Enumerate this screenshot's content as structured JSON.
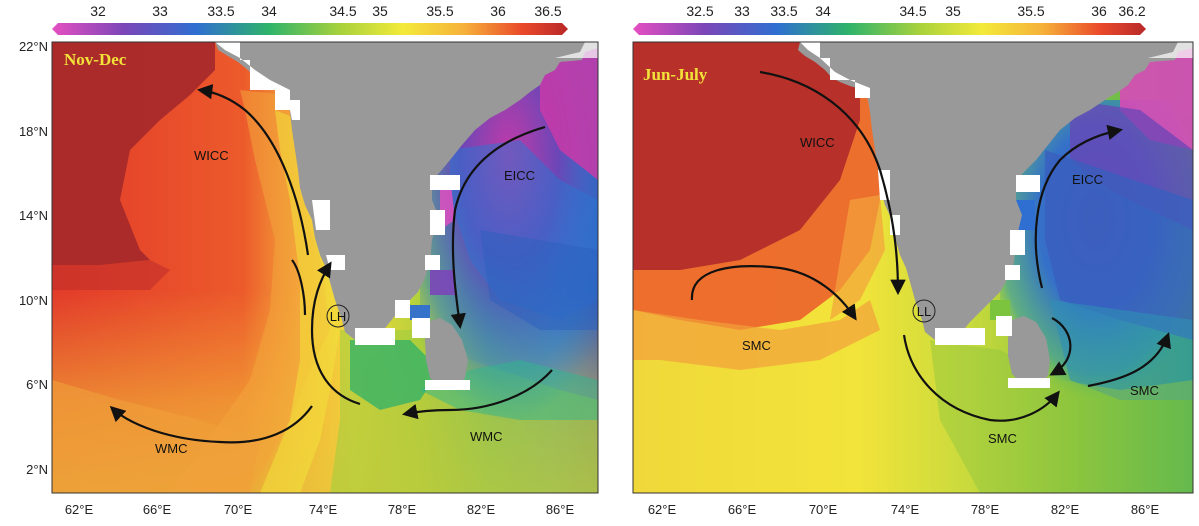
{
  "panels": [
    {
      "id": "left",
      "title": "Nov-Dec",
      "colorbar_ticks": [
        "32",
        "33",
        "33.5",
        "34",
        "34.5",
        "35",
        "35.5",
        "36",
        "36.5"
      ],
      "lat_labels": [
        "22°N",
        "18°N",
        "14°N",
        "10°N",
        "6°N",
        "2°N"
      ],
      "lon_labels": [
        "62°E",
        "66°E",
        "70°E",
        "74°E",
        "78°E",
        "82°E",
        "86°E"
      ],
      "currents": [
        "WICC",
        "EICC",
        "WMC",
        "WMC"
      ],
      "eddy_label": "LH"
    },
    {
      "id": "right",
      "title": "Jun-July",
      "colorbar_ticks": [
        "32.5",
        "33",
        "33.5",
        "34",
        "34.5",
        "35",
        "35.5",
        "36",
        "36.2"
      ],
      "lat_labels": [],
      "lon_labels": [
        "62°E",
        "66°E",
        "70°E",
        "74°E",
        "78°E",
        "82°E",
        "86°E"
      ],
      "currents": [
        "WICC",
        "EICC",
        "SMC",
        "SMC",
        "SMC"
      ],
      "eddy_label": "LL"
    }
  ],
  "colors": {
    "land": "#999999",
    "colorbar_stops": [
      "#e64fc1",
      "#7b46b8",
      "#2f6fd1",
      "#2eb36a",
      "#a9d23c",
      "#f3ea3a",
      "#f6b03a",
      "#ea4a2a",
      "#b82828"
    ]
  }
}
